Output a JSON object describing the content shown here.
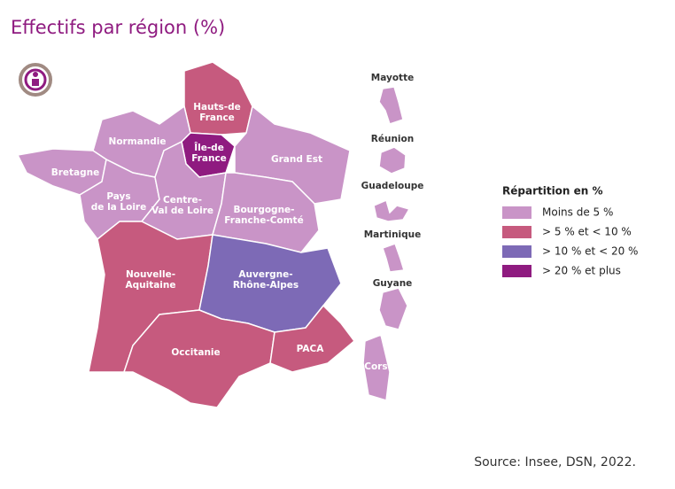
{
  "header": {
    "title": "Effectifs par région (%)"
  },
  "legend": {
    "title": "Répartition en %",
    "items": [
      {
        "label": "Moins de 5 %",
        "color": "#c994c7"
      },
      {
        "label": "> 5 % et < 10 %",
        "color": "#c65a7e"
      },
      {
        "label": "> 10 % et < 20 %",
        "color": "#7d6ab6"
      },
      {
        "label": "> 20 % et plus",
        "color": "#8f1b80"
      }
    ]
  },
  "regions": [
    {
      "label": [
        "Hauts-de",
        "France"
      ],
      "class": 1
    },
    {
      "label": [
        "Normandie"
      ],
      "class": 0
    },
    {
      "label": [
        "Bretagne"
      ],
      "class": 0
    },
    {
      "label": [
        "Île-de",
        "France"
      ],
      "class": 3
    },
    {
      "label": [
        "Grand Est"
      ],
      "class": 0
    },
    {
      "label": [
        "Pays",
        "de la Loire"
      ],
      "class": 0
    },
    {
      "label": [
        "Centre-",
        "Val de Loire"
      ],
      "class": 0
    },
    {
      "label": [
        "Bourgogne-",
        "Franche-Comté"
      ],
      "class": 0
    },
    {
      "label": [
        "Nouvelle-",
        "Aquitaine"
      ],
      "class": 1
    },
    {
      "label": [
        "Auvergne-",
        "Rhône-Alpes"
      ],
      "class": 2
    },
    {
      "label": [
        "Occitanie"
      ],
      "class": 1
    },
    {
      "label": [
        "PACA"
      ],
      "class": 1
    },
    {
      "label": [
        "Corse"
      ],
      "class": 0
    },
    {
      "label": [
        "Mayotte"
      ],
      "class": 0
    },
    {
      "label": [
        "Réunion"
      ],
      "class": 0
    },
    {
      "label": [
        "Guadeloupe"
      ],
      "class": 0
    },
    {
      "label": [
        "Martinique"
      ],
      "class": 0
    },
    {
      "label": [
        "Guyane"
      ],
      "class": 0
    }
  ],
  "footer": {
    "source": "Source: Insee, DSN, 2022."
  }
}
